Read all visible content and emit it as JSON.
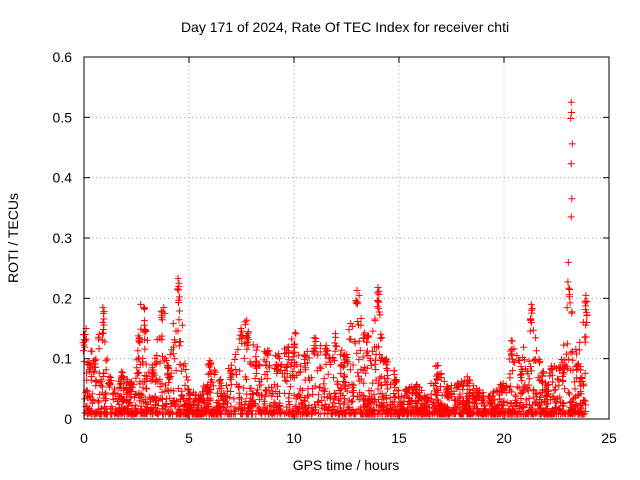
{
  "chart_data": {
    "type": "scatter",
    "title": "Day 171 of 2024, Rate Of TEC Index for receiver chti",
    "xlabel": "GPS time / hours",
    "ylabel": "ROTI / TECUs",
    "xlim": [
      0,
      25
    ],
    "ylim": [
      0,
      0.6
    ],
    "xticks": [
      "0",
      "5",
      "10",
      "15",
      "20",
      "25"
    ],
    "yticks": [
      "0",
      "0.1",
      "0.2",
      "0.3",
      "0.4",
      "0.5",
      "0.6"
    ],
    "grid": true,
    "marker": "+",
    "color": "#ff0000",
    "series": [
      {
        "name": "ROTI",
        "envelope": [
          [
            0.0,
            0.15
          ],
          [
            0.5,
            0.1
          ],
          [
            0.9,
            0.18
          ],
          [
            1.2,
            0.07
          ],
          [
            1.8,
            0.08
          ],
          [
            2.2,
            0.06
          ],
          [
            2.6,
            0.14
          ],
          [
            2.9,
            0.19
          ],
          [
            3.3,
            0.1
          ],
          [
            3.7,
            0.18
          ],
          [
            4.0,
            0.09
          ],
          [
            4.5,
            0.23
          ],
          [
            5.0,
            0.05
          ],
          [
            5.5,
            0.04
          ],
          [
            6.0,
            0.1
          ],
          [
            6.5,
            0.07
          ],
          [
            7.0,
            0.09
          ],
          [
            7.5,
            0.15
          ],
          [
            7.8,
            0.17
          ],
          [
            8.2,
            0.12
          ],
          [
            8.7,
            0.12
          ],
          [
            9.2,
            0.11
          ],
          [
            9.7,
            0.12
          ],
          [
            10.0,
            0.15
          ],
          [
            10.5,
            0.11
          ],
          [
            11.0,
            0.14
          ],
          [
            11.5,
            0.12
          ],
          [
            12.0,
            0.15
          ],
          [
            12.4,
            0.12
          ],
          [
            13.0,
            0.21
          ],
          [
            13.5,
            0.14
          ],
          [
            14.0,
            0.21
          ],
          [
            14.4,
            0.1
          ],
          [
            14.8,
            0.08
          ],
          [
            15.3,
            0.05
          ],
          [
            15.8,
            0.06
          ],
          [
            16.3,
            0.04
          ],
          [
            16.8,
            0.09
          ],
          [
            17.3,
            0.06
          ],
          [
            17.8,
            0.06
          ],
          [
            18.3,
            0.07
          ],
          [
            18.8,
            0.05
          ],
          [
            19.3,
            0.04
          ],
          [
            19.9,
            0.06
          ],
          [
            20.4,
            0.13
          ],
          [
            20.8,
            0.1
          ],
          [
            21.3,
            0.19
          ],
          [
            21.8,
            0.08
          ],
          [
            22.3,
            0.09
          ],
          [
            22.8,
            0.1
          ],
          [
            23.1,
            0.26
          ],
          [
            23.5,
            0.1
          ],
          [
            23.9,
            0.2
          ]
        ],
        "points": [
          [
            23.2,
            0.525
          ],
          [
            23.22,
            0.508
          ],
          [
            23.18,
            0.498
          ],
          [
            23.25,
            0.456
          ],
          [
            23.2,
            0.423
          ],
          [
            23.23,
            0.365
          ],
          [
            23.2,
            0.335
          ],
          [
            4.48,
            0.233
          ],
          [
            4.52,
            0.225
          ],
          [
            4.5,
            0.193
          ],
          [
            4.48,
            0.146
          ],
          [
            13.0,
            0.213
          ],
          [
            13.1,
            0.205
          ],
          [
            14.0,
            0.218
          ],
          [
            14.05,
            0.212
          ],
          [
            14.02,
            0.195
          ],
          [
            21.3,
            0.19
          ],
          [
            21.35,
            0.183
          ],
          [
            23.9,
            0.205
          ],
          [
            23.95,
            0.195
          ],
          [
            23.93,
            0.16
          ],
          [
            0.1,
            0.15
          ],
          [
            0.05,
            0.14
          ],
          [
            0.9,
            0.185
          ],
          [
            0.92,
            0.175
          ],
          [
            2.7,
            0.19
          ],
          [
            2.85,
            0.185
          ],
          [
            3.8,
            0.185
          ],
          [
            3.85,
            0.175
          ]
        ]
      }
    ]
  }
}
